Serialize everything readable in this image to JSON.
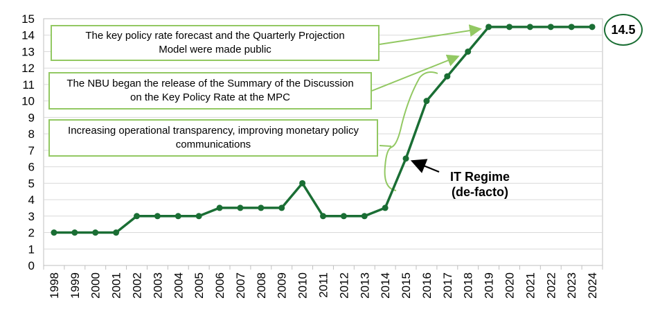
{
  "chart_data": {
    "type": "line",
    "categories": [
      "1998",
      "1999",
      "2000",
      "2001",
      "2002",
      "2003",
      "2004",
      "2005",
      "2006",
      "2007",
      "2008",
      "2009",
      "2010",
      "2011",
      "2012",
      "2013",
      "2014",
      "2015",
      "2016",
      "2017",
      "2018",
      "2019",
      "2020",
      "2021",
      "2022",
      "2023",
      "2024"
    ],
    "values": [
      2,
      2,
      2,
      2,
      3,
      3,
      3,
      3,
      3.5,
      3.5,
      3.5,
      3.5,
      5,
      3,
      3,
      3,
      3.5,
      6.5,
      10,
      11.5,
      13,
      14.5,
      14.5,
      14.5,
      14.5,
      14.5,
      14.5
    ],
    "ylim": [
      0,
      15
    ],
    "yticks": [
      "0",
      "1",
      "2",
      "3",
      "4",
      "5",
      "6",
      "7",
      "8",
      "9",
      "10",
      "11",
      "12",
      "13",
      "14",
      "15"
    ],
    "grid": true,
    "colors": {
      "line": "#1a6e34",
      "marker": "#1a6e34",
      "annotation": "#92c862",
      "grid": "#d9d9d9"
    },
    "end_label": "14.5",
    "annotations": [
      {
        "line1": "The key policy rate forecast and the Quarterly Projection",
        "line2": "Model were made public"
      },
      {
        "line1": "The NBU began the release of the Summary of the Discussion",
        "line2": "on the Key Policy Rate at the MPC"
      },
      {
        "line1": "Increasing operational transparency, improving monetary policy",
        "line2": "communications"
      }
    ],
    "regime_label": {
      "line1": "IT Regime",
      "line2": "(de-facto)"
    }
  }
}
